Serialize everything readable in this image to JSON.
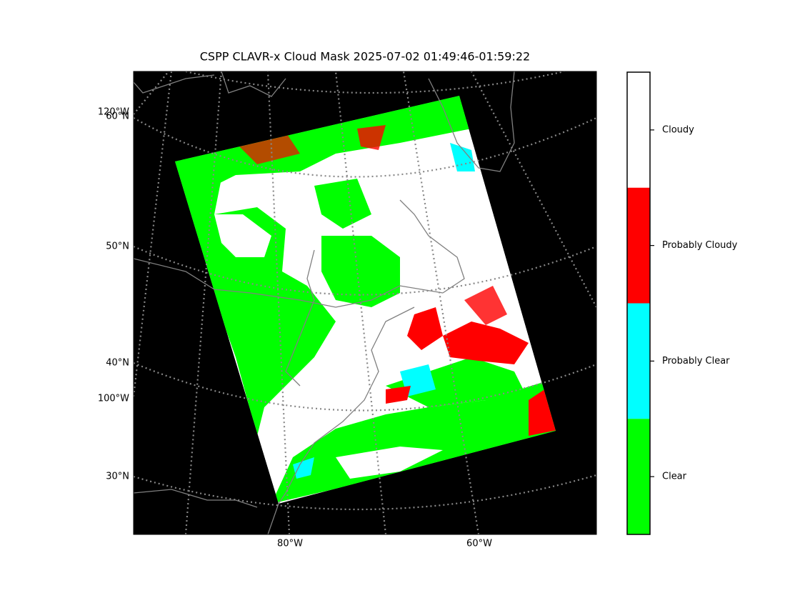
{
  "title": "CSPP CLAVR-x Cloud Mask 2025-07-02 01:49:46-01:59:22",
  "lat_labels": [
    "60°N",
    "50°N",
    "40°N",
    "30°N"
  ],
  "lon_labels_left": [
    "120°W",
    "100°W"
  ],
  "lon_labels_bottom": [
    "80°W",
    "60°W"
  ],
  "legend": [
    {
      "label": "Cloudy",
      "color": "#ffffff"
    },
    {
      "label": "Probably Cloudy",
      "color": "#ff0000"
    },
    {
      "label": "Probably Clear",
      "color": "#00ffff"
    },
    {
      "label": "Clear",
      "color": "#00ff00"
    }
  ]
}
